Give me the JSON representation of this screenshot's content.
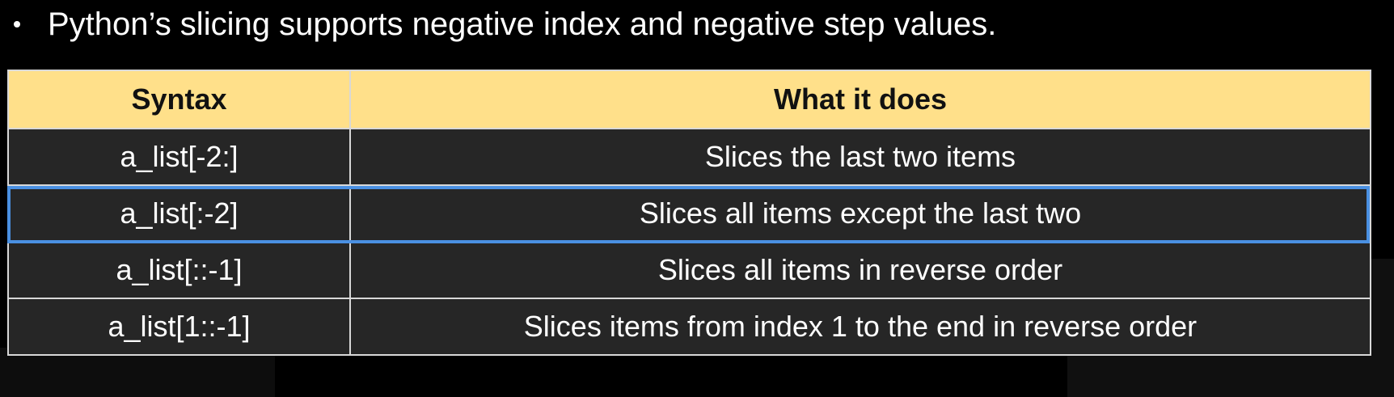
{
  "bullet": {
    "text": "Python’s slicing supports negative index and negative step values."
  },
  "table": {
    "headers": [
      "Syntax",
      "What it does"
    ],
    "rows": [
      [
        "a_list[-2:]",
        "Slices the last two items"
      ],
      [
        "a_list[:-2]",
        "Slices all items except the last two"
      ],
      [
        "a_list[::-1]",
        "Slices all items in reverse order"
      ],
      [
        "a_list[1::-1]",
        "Slices items from index 1 to the end in reverse order"
      ]
    ],
    "highlighted_row": 1
  },
  "colors": {
    "header_bg": "#ffe08a",
    "row_bg": "#262626",
    "highlight": "#4a90e2"
  }
}
